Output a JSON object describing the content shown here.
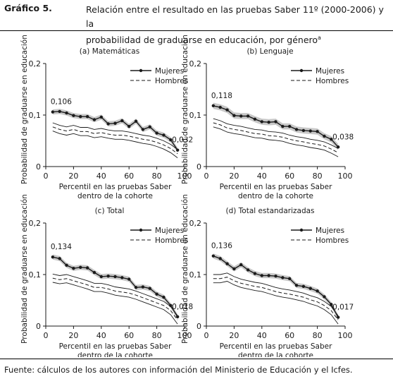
{
  "figure": {
    "label": "Gráfico 5.",
    "title_line1": "Relación entre el resultado en las pruebas Saber 11º (2000-2006) y la",
    "title_line2": "probabilidad de graduarse en educación, por género",
    "title_note": "a",
    "source": "Fuente: cálculos de los autores con información del Ministerio de Educación y el Icfes."
  },
  "colors": {
    "mujeres_line": "#1a1a1a",
    "band": "#c8c8c8",
    "hombres_line": "#1a1a1a"
  },
  "chart_data": [
    {
      "type": "line",
      "title": "(a) Matemáticas",
      "ylabel": "Probabilidad de graduarse en educación",
      "xlabel_line1": "Percentil en las pruebas Saber",
      "xlabel_line2": "dentro de la cohorte",
      "xlim": [
        0,
        100
      ],
      "ylim": [
        0,
        0.2
      ],
      "xticks": [
        0,
        20,
        40,
        60,
        80,
        100
      ],
      "yticks": [
        {
          "v": 0,
          "label": "0"
        },
        {
          "v": 0.1,
          "label": "0,1"
        },
        {
          "v": 0.2,
          "label": "0,2"
        }
      ],
      "legend": "top-right",
      "x": [
        5,
        10,
        15,
        20,
        25,
        30,
        35,
        40,
        45,
        50,
        55,
        60,
        65,
        70,
        75,
        80,
        85,
        90,
        95
      ],
      "series": [
        {
          "name": "Mujeres",
          "style": "solid-markers-band",
          "values": [
            0.106,
            0.107,
            0.104,
            0.099,
            0.097,
            0.097,
            0.091,
            0.096,
            0.083,
            0.084,
            0.089,
            0.078,
            0.088,
            0.072,
            0.077,
            0.065,
            0.061,
            0.052,
            0.032
          ],
          "band_halfwidth": 0.005
        },
        {
          "name": "Hombres",
          "style": "dashed-band",
          "values": [
            0.077,
            0.072,
            0.069,
            0.072,
            0.068,
            0.068,
            0.064,
            0.066,
            0.063,
            0.061,
            0.061,
            0.059,
            0.056,
            0.053,
            0.051,
            0.047,
            0.042,
            0.035,
            0.025
          ],
          "band_halfwidth": 0.008
        }
      ],
      "annotations": [
        {
          "x": 5,
          "y": 0.106,
          "text": "0,106",
          "pos": "above"
        },
        {
          "x": 95,
          "y": 0.032,
          "text": "0,032",
          "pos": "above"
        }
      ]
    },
    {
      "type": "line",
      "title": "(b) Lenguaje",
      "ylabel": "Probabilidad de graduarse en educación",
      "xlabel_line1": "Percentil en las pruebas Saber",
      "xlabel_line2": "dentro de la cohorte",
      "xlim": [
        0,
        100
      ],
      "ylim": [
        0,
        0.2
      ],
      "xticks": [
        0,
        20,
        40,
        60,
        80,
        100
      ],
      "yticks": [
        {
          "v": 0,
          "label": "0"
        },
        {
          "v": 0.1,
          "label": "0,1"
        },
        {
          "v": 0.2,
          "label": "0,2"
        }
      ],
      "legend": "top-right",
      "x": [
        5,
        10,
        15,
        20,
        25,
        30,
        35,
        40,
        45,
        50,
        55,
        60,
        65,
        70,
        75,
        80,
        85,
        90,
        95
      ],
      "series": [
        {
          "name": "Mujeres",
          "style": "solid-markers-band",
          "values": [
            0.118,
            0.115,
            0.11,
            0.099,
            0.098,
            0.098,
            0.092,
            0.087,
            0.086,
            0.087,
            0.078,
            0.078,
            0.072,
            0.07,
            0.069,
            0.068,
            0.059,
            0.053,
            0.038
          ],
          "band_halfwidth": 0.006
        },
        {
          "name": "Hombres",
          "style": "dashed-band",
          "values": [
            0.085,
            0.081,
            0.075,
            0.072,
            0.07,
            0.067,
            0.064,
            0.063,
            0.06,
            0.059,
            0.057,
            0.053,
            0.05,
            0.048,
            0.045,
            0.043,
            0.04,
            0.034,
            0.027
          ],
          "band_halfwidth": 0.008
        }
      ],
      "annotations": [
        {
          "x": 5,
          "y": 0.118,
          "text": "0,118",
          "pos": "above"
        },
        {
          "x": 95,
          "y": 0.038,
          "text": "0,038",
          "pos": "above"
        }
      ]
    },
    {
      "type": "line",
      "title": "(c) Total",
      "ylabel": "Probabilidad de graduarse en educación",
      "xlabel_line1": "Percentil en las pruebas Saber",
      "xlabel_line2": "dentro de la cohorte",
      "xlim": [
        0,
        100
      ],
      "ylim": [
        0,
        0.2
      ],
      "xticks": [
        0,
        20,
        40,
        60,
        80,
        100
      ],
      "yticks": [
        {
          "v": 0,
          "label": "0"
        },
        {
          "v": 0.1,
          "label": "0,1"
        },
        {
          "v": 0.2,
          "label": "0,2"
        }
      ],
      "legend": "top-right",
      "x": [
        5,
        10,
        15,
        20,
        25,
        30,
        35,
        40,
        45,
        50,
        55,
        60,
        65,
        70,
        75,
        80,
        85,
        90,
        95
      ],
      "series": [
        {
          "name": "Mujeres",
          "style": "solid-markers-band",
          "values": [
            0.134,
            0.131,
            0.118,
            0.112,
            0.114,
            0.113,
            0.104,
            0.096,
            0.097,
            0.096,
            0.094,
            0.091,
            0.075,
            0.076,
            0.073,
            0.062,
            0.056,
            0.04,
            0.018
          ],
          "band_halfwidth": 0.005
        },
        {
          "name": "Hombres",
          "style": "dashed-band",
          "values": [
            0.093,
            0.09,
            0.092,
            0.088,
            0.084,
            0.08,
            0.075,
            0.075,
            0.072,
            0.068,
            0.066,
            0.064,
            0.06,
            0.055,
            0.05,
            0.045,
            0.04,
            0.03,
            0.012
          ],
          "band_halfwidth": 0.008
        }
      ],
      "annotations": [
        {
          "x": 5,
          "y": 0.134,
          "text": "0,134",
          "pos": "above"
        },
        {
          "x": 95,
          "y": 0.018,
          "text": "0,018",
          "pos": "above"
        }
      ]
    },
    {
      "type": "line",
      "title": "(d) Total estandarizadas",
      "ylabel": "Probabilidad de graduarse en educación",
      "xlabel_line1": "Percentil en las pruebas Saber",
      "xlabel_line2": "dentro de la cohorte",
      "xlim": [
        0,
        100
      ],
      "ylim": [
        0,
        0.2
      ],
      "xticks": [
        0,
        20,
        40,
        60,
        80,
        100
      ],
      "yticks": [
        {
          "v": 0,
          "label": "0"
        },
        {
          "v": 0.1,
          "label": "0,1"
        },
        {
          "v": 0.2,
          "label": "0,2"
        }
      ],
      "legend": "top-right",
      "x": [
        5,
        10,
        15,
        20,
        25,
        30,
        35,
        40,
        45,
        50,
        55,
        60,
        65,
        70,
        75,
        80,
        85,
        90,
        95
      ],
      "series": [
        {
          "name": "Mujeres",
          "style": "solid-markers-band",
          "values": [
            0.136,
            0.131,
            0.121,
            0.111,
            0.119,
            0.109,
            0.102,
            0.098,
            0.098,
            0.097,
            0.094,
            0.092,
            0.079,
            0.077,
            0.073,
            0.068,
            0.057,
            0.042,
            0.017
          ],
          "band_halfwidth": 0.005
        },
        {
          "name": "Hombres",
          "style": "dashed-band",
          "values": [
            0.092,
            0.092,
            0.095,
            0.088,
            0.083,
            0.08,
            0.077,
            0.075,
            0.071,
            0.067,
            0.064,
            0.062,
            0.059,
            0.056,
            0.051,
            0.047,
            0.04,
            0.03,
            0.012
          ],
          "band_halfwidth": 0.008
        }
      ],
      "annotations": [
        {
          "x": 5,
          "y": 0.136,
          "text": "0,136",
          "pos": "above"
        },
        {
          "x": 95,
          "y": 0.017,
          "text": "0,017",
          "pos": "above"
        }
      ]
    }
  ]
}
